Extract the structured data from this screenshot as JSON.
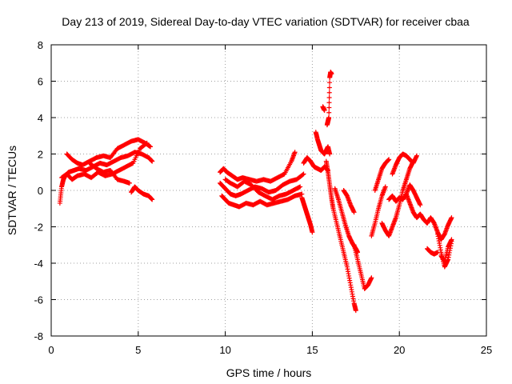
{
  "chart_data": {
    "type": "scatter",
    "title": "Day 213 of 2019, Sidereal Day-to-day VTEC variation (SDTVAR) for receiver cbaa",
    "xlabel": "GPS time / hours",
    "ylabel": "SDTVAR / TECUs",
    "xlim": [
      0,
      25
    ],
    "ylim": [
      -8,
      8
    ],
    "xticks": [
      0,
      5,
      10,
      15,
      20,
      25
    ],
    "yticks": [
      -8,
      -6,
      -4,
      -2,
      0,
      2,
      4,
      6,
      8
    ],
    "grid": true,
    "marker": "plus",
    "series": [
      {
        "name": "SDTVAR",
        "color": "#ff0000",
        "segments": [
          {
            "x": [
              0.5,
              0.6,
              0.7,
              0.8,
              1.0,
              1.3,
              1.6,
              2.0,
              2.4,
              2.8,
              3.2,
              3.6,
              4.0,
              4.4,
              4.8,
              5.2,
              5.6,
              5.8
            ],
            "y": [
              -0.7,
              0.2,
              0.6,
              0.8,
              1.0,
              1.1,
              1.2,
              1.1,
              1.3,
              1.5,
              1.4,
              1.6,
              1.8,
              1.9,
              2.1,
              2.0,
              1.8,
              1.6
            ]
          },
          {
            "x": [
              0.6,
              0.9,
              1.2,
              1.5,
              1.9,
              2.3,
              2.7,
              3.1,
              3.5,
              3.9,
              4.3,
              4.7,
              5.1,
              5.5
            ],
            "y": [
              0.7,
              0.9,
              0.6,
              0.8,
              0.9,
              0.7,
              1.0,
              0.8,
              0.9,
              1.1,
              1.3,
              1.5,
              2.3,
              2.6
            ]
          },
          {
            "x": [
              0.9,
              1.2,
              1.5,
              1.8,
              2.2,
              2.6,
              3.0,
              3.4,
              3.8,
              4.2,
              4.6,
              5.0,
              5.4,
              5.7
            ],
            "y": [
              2.0,
              1.7,
              1.5,
              1.4,
              1.6,
              1.8,
              1.9,
              1.8,
              2.3,
              2.5,
              2.7,
              2.8,
              2.6,
              2.4
            ]
          },
          {
            "x": [
              2.2,
              2.6,
              3.0,
              3.4,
              3.8,
              4.2,
              4.5
            ],
            "y": [
              1.5,
              1.2,
              1.0,
              1.1,
              0.6,
              0.5,
              0.4
            ]
          },
          {
            "x": [
              4.6,
              4.8,
              5.0,
              5.3,
              5.6,
              5.8
            ],
            "y": [
              -0.1,
              0.2,
              0.0,
              -0.2,
              -0.3,
              -0.5
            ]
          },
          {
            "x": [
              9.7,
              9.9,
              10.1,
              10.4,
              10.7,
              11.0,
              11.4,
              11.8,
              12.2,
              12.6,
              13.0,
              13.4,
              13.8,
              14.0
            ],
            "y": [
              1.0,
              1.2,
              1.0,
              0.8,
              0.6,
              0.7,
              0.6,
              0.5,
              0.6,
              0.5,
              0.7,
              0.9,
              1.6,
              2.1
            ]
          },
          {
            "x": [
              9.7,
              9.9,
              10.1,
              10.3,
              10.6,
              10.9,
              11.3,
              11.7,
              12.1,
              12.5,
              12.9,
              13.3,
              13.7,
              14.1,
              14.5
            ],
            "y": [
              0.4,
              0.2,
              0.0,
              -0.2,
              -0.3,
              -0.2,
              0.0,
              0.2,
              0.1,
              -0.1,
              0.0,
              0.3,
              0.5,
              0.6,
              0.9
            ]
          },
          {
            "x": [
              9.8,
              10.0,
              10.2,
              10.5,
              10.8,
              11.2,
              11.6,
              12.0,
              12.4,
              12.8,
              13.2,
              13.6,
              14.0,
              14.4
            ],
            "y": [
              -0.3,
              -0.5,
              -0.7,
              -0.8,
              -0.9,
              -0.7,
              -0.8,
              -0.6,
              -0.8,
              -0.7,
              -0.6,
              -0.5,
              -0.3,
              -0.2
            ]
          },
          {
            "x": [
              10.0,
              10.3,
              10.7,
              11.1,
              11.5,
              11.9,
              12.3,
              12.7,
              13.1,
              13.5,
              13.9,
              14.3
            ],
            "y": [
              0.6,
              0.4,
              0.2,
              0.5,
              0.3,
              -0.1,
              -0.3,
              -0.5,
              -0.3,
              -0.2,
              0.0,
              0.2
            ]
          },
          {
            "x": [
              14.4,
              14.5,
              14.6,
              14.7,
              14.8,
              14.9,
              15.0
            ],
            "y": [
              -0.4,
              -0.7,
              -1.0,
              -1.3,
              -1.6,
              -1.9,
              -2.3
            ]
          },
          {
            "x": [
              14.5,
              14.7,
              14.9,
              15.1,
              15.3,
              15.5,
              15.7,
              15.9
            ],
            "y": [
              1.5,
              1.8,
              1.6,
              1.3,
              1.2,
              1.1,
              1.3,
              1.1
            ]
          },
          {
            "x": [
              15.2,
              15.3,
              15.4,
              15.5,
              15.6,
              15.7,
              15.8,
              15.9,
              16.0
            ],
            "y": [
              3.2,
              2.8,
              2.5,
              2.2,
              2.1,
              2.0,
              2.2,
              2.4,
              2.0
            ]
          },
          {
            "x": [
              15.6,
              15.65,
              15.7
            ],
            "y": [
              4.6,
              4.5,
              4.4
            ]
          },
          {
            "x": [
              15.85,
              15.9,
              15.95,
              16.0,
              16.05,
              16.1
            ],
            "y": [
              3.6,
              3.8,
              4.0,
              6.2,
              6.5,
              6.4
            ]
          },
          {
            "x": [
              15.8,
              15.9,
              16.0,
              16.1,
              16.2,
              16.4,
              16.6,
              16.8,
              17.0,
              17.2,
              17.4,
              17.5
            ],
            "y": [
              1.6,
              1.0,
              0.3,
              -0.4,
              -1.0,
              -1.8,
              -2.6,
              -3.4,
              -4.2,
              -5.2,
              -6.2,
              -6.6
            ]
          },
          {
            "x": [
              16.3,
              16.5,
              16.7,
              16.9,
              17.1,
              17.3,
              17.5,
              17.6
            ],
            "y": [
              0.1,
              -0.5,
              -1.2,
              -1.9,
              -2.5,
              -2.9,
              -3.2,
              -3.4
            ]
          },
          {
            "x": [
              16.8,
              17.0,
              17.2,
              17.4
            ],
            "y": [
              0.0,
              -0.3,
              -0.8,
              -1.2
            ]
          },
          {
            "x": [
              17.4,
              17.6,
              17.8,
              18.0,
              18.2,
              18.4
            ],
            "y": [
              -3.0,
              -3.8,
              -4.6,
              -5.4,
              -5.2,
              -4.8
            ]
          },
          {
            "x": [
              18.4,
              18.6,
              18.8,
              19.0,
              19.2
            ],
            "y": [
              -2.5,
              -1.8,
              -1.0,
              -0.3,
              0.2
            ]
          },
          {
            "x": [
              18.6,
              18.8,
              19.0,
              19.2,
              19.4
            ],
            "y": [
              0.0,
              0.6,
              1.2,
              1.5,
              1.7
            ]
          },
          {
            "x": [
              19.0,
              19.2,
              19.4,
              19.6,
              19.8,
              20.0,
              20.2,
              20.4,
              20.6,
              20.8
            ],
            "y": [
              -1.8,
              -2.2,
              -2.5,
              -2.0,
              -1.5,
              -0.8,
              0.0,
              0.6,
              1.2,
              1.6
            ]
          },
          {
            "x": [
              19.6,
              19.8,
              20.0,
              20.2,
              20.4,
              20.6,
              20.8,
              21.0
            ],
            "y": [
              0.9,
              1.4,
              1.8,
              2.0,
              1.9,
              1.7,
              1.5,
              1.9
            ]
          },
          {
            "x": [
              19.4,
              19.6,
              19.8,
              20.0,
              20.2,
              20.4,
              20.6,
              20.8,
              21.0,
              21.2
            ],
            "y": [
              -0.5,
              -0.3,
              -0.6,
              -0.4,
              -0.5,
              -0.2,
              0.3,
              0.0,
              -0.4,
              -0.8
            ]
          },
          {
            "x": [
              20.4,
              20.6,
              20.8,
              21.0,
              21.2,
              21.4,
              21.6,
              21.8,
              22.0,
              22.2,
              22.4,
              22.6,
              22.8,
              23.0
            ],
            "y": [
              -0.2,
              -0.7,
              -1.2,
              -1.5,
              -1.3,
              -1.6,
              -1.8,
              -1.5,
              -1.8,
              -2.3,
              -2.7,
              -2.4,
              -1.9,
              -1.5
            ]
          },
          {
            "x": [
              21.6,
              21.8,
              22.0,
              22.2
            ],
            "y": [
              -3.2,
              -3.4,
              -3.5,
              -3.4
            ]
          },
          {
            "x": [
              22.2,
              22.4,
              22.6,
              22.8,
              23.0
            ],
            "y": [
              -2.4,
              -3.4,
              -4.2,
              -3.8,
              -2.8
            ]
          },
          {
            "x": [
              22.4,
              22.6,
              22.8,
              23.0
            ],
            "y": [
              -3.6,
              -3.9,
              -3.1,
              -2.7
            ]
          }
        ]
      }
    ]
  }
}
